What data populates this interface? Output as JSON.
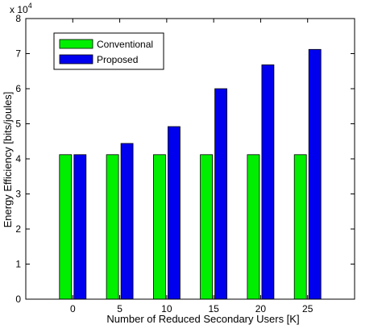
{
  "chart_data": {
    "type": "bar",
    "title": "",
    "xlabel": "Number of Reduced Secondary Users [K]",
    "ylabel": "Energy Efficiency [bits/joules]",
    "y_multiplier_label": "x 10",
    "y_multiplier_exponent": "4",
    "categories": [
      "0",
      "5",
      "10",
      "15",
      "20",
      "25"
    ],
    "yticks": [
      "0",
      "1",
      "2",
      "3",
      "4",
      "5",
      "6",
      "7",
      "8"
    ],
    "ylim": [
      0,
      8
    ],
    "series": [
      {
        "name": "Conventional",
        "color": "#00ee00",
        "values": [
          4.12,
          4.12,
          4.12,
          4.12,
          4.12,
          4.12
        ]
      },
      {
        "name": "Proposed",
        "color": "#0000ee",
        "values": [
          4.12,
          4.44,
          4.92,
          6.0,
          6.68,
          7.12
        ]
      }
    ],
    "legend_position": "top-left",
    "grid": false
  }
}
